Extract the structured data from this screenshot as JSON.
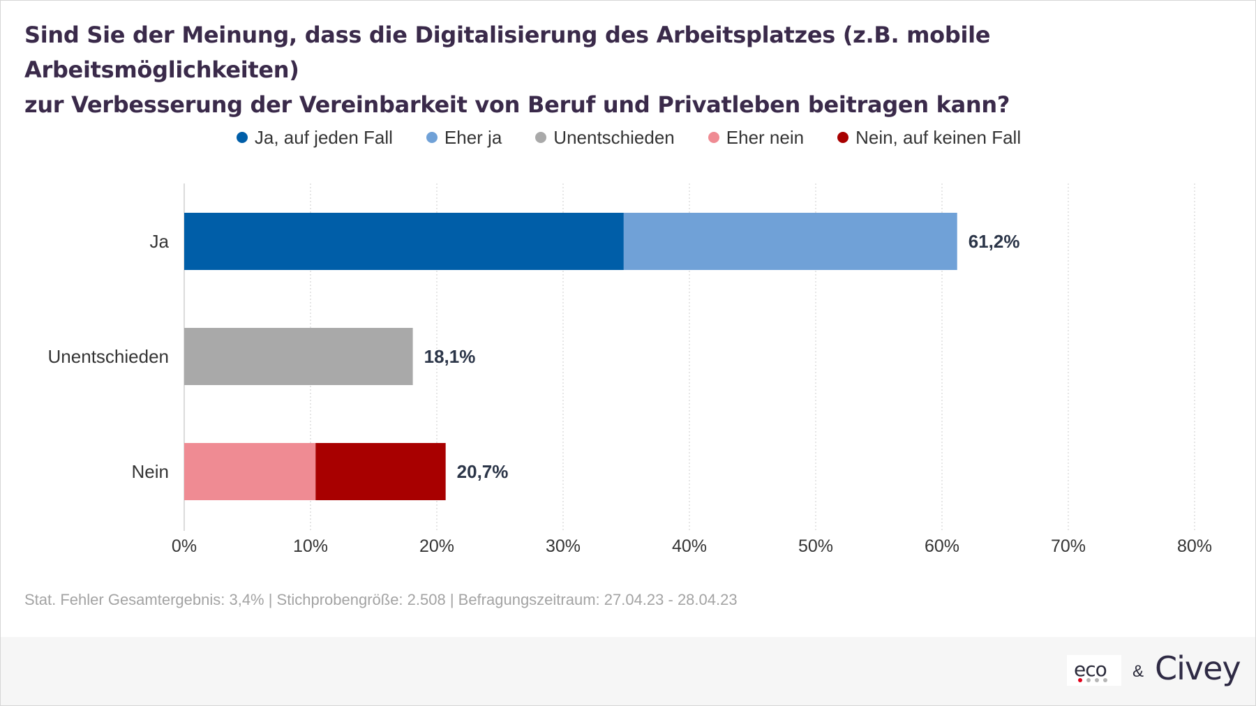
{
  "title_lines": [
    "Sind Sie der Meinung, dass die Digitalisierung des Arbeitsplatzes (z.B. mobile Arbeitsmöglichkeiten)",
    "zur Verbesserung der Vereinbarkeit von Beruf und Privatleben beitragen kann?"
  ],
  "legend": [
    {
      "label": "Ja, auf jeden Fall",
      "color": "#005ea8"
    },
    {
      "label": "Eher ja",
      "color": "#70a1d7"
    },
    {
      "label": "Unentschieden",
      "color": "#a9a9a9"
    },
    {
      "label": "Eher nein",
      "color": "#ef8b93"
    },
    {
      "label": "Nein, auf keinen Fall",
      "color": "#a80000"
    }
  ],
  "chart_data": {
    "type": "bar",
    "orientation": "horizontal",
    "stacked": true,
    "categories": [
      "Ja",
      "Unentschieden",
      "Nein"
    ],
    "series": [
      {
        "name": "Ja, auf jeden Fall",
        "color": "#005ea8",
        "values": [
          34.8,
          0,
          0
        ]
      },
      {
        "name": "Eher ja",
        "color": "#70a1d7",
        "values": [
          26.4,
          0,
          0
        ]
      },
      {
        "name": "Unentschieden",
        "color": "#a9a9a9",
        "values": [
          0,
          18.1,
          0
        ]
      },
      {
        "name": "Eher nein",
        "color": "#ef8b93",
        "values": [
          0,
          0,
          10.4
        ]
      },
      {
        "name": "Nein, auf keinen Fall",
        "color": "#a80000",
        "values": [
          0,
          0,
          10.3
        ]
      }
    ],
    "totals": [
      61.2,
      18.1,
      20.7
    ],
    "total_labels": [
      "61,2%",
      "18,1%",
      "20,7%"
    ],
    "x_ticks": [
      0,
      10,
      20,
      30,
      40,
      50,
      60,
      70,
      80
    ],
    "x_tick_labels": [
      "0%",
      "10%",
      "20%",
      "30%",
      "40%",
      "50%",
      "60%",
      "70%",
      "80%"
    ],
    "xlim": [
      0,
      80
    ],
    "grid": "vertical dotted",
    "legend_position": "top"
  },
  "source_note": "Stat. Fehler Gesamtergebnis: 3,4% | Stichprobengröße: 2.508 | Befragungszeitraum: 27.04.23 - 28.04.23",
  "footer": {
    "logo_eco": "eco",
    "ampersand": "&",
    "logo_civey": "Civey"
  }
}
